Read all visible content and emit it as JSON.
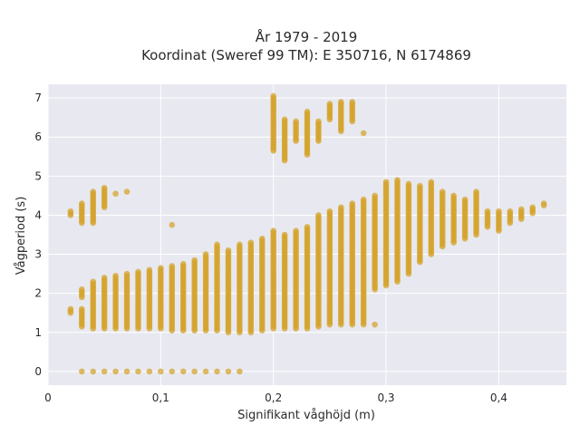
{
  "chart_data": {
    "type": "scatter",
    "title_line1": "År 1979 - 2019",
    "title_line2": "Koordinat (Sweref 99 TM): E 350716, N 6174869",
    "xlabel": "Signifikant våghöjd (m)",
    "ylabel": "Vågperiod (s)",
    "xlim": [
      0,
      0.46
    ],
    "ylim": [
      -0.35,
      7.35
    ],
    "x_ticks": [
      0,
      0.1,
      0.2,
      0.3,
      0.4
    ],
    "x_tick_labels": [
      "0",
      "0,1",
      "0,2",
      "0,3",
      "0,4"
    ],
    "y_ticks": [
      0,
      1,
      2,
      3,
      4,
      5,
      6,
      7
    ],
    "y_tick_labels": [
      "0",
      "1",
      "2",
      "3",
      "4",
      "5",
      "6",
      "7"
    ],
    "grid": true,
    "colors": {
      "plot_bg": "#e8e9f0",
      "grid": "#ffffff",
      "marker": "#d4a22a"
    },
    "columns": [
      {
        "x": 0.02,
        "segments": [
          [
            1.5,
            1.6
          ],
          [
            4.0,
            4.1
          ]
        ]
      },
      {
        "x": 0.03,
        "segments": [
          [
            0.0,
            0.0
          ],
          [
            1.15,
            1.6
          ],
          [
            1.9,
            2.1
          ],
          [
            3.8,
            4.3
          ]
        ]
      },
      {
        "x": 0.04,
        "segments": [
          [
            0.0,
            0.0
          ],
          [
            1.1,
            2.3
          ],
          [
            3.8,
            4.6
          ]
        ]
      },
      {
        "x": 0.05,
        "segments": [
          [
            0.0,
            0.0
          ],
          [
            1.1,
            2.4
          ],
          [
            4.2,
            4.7
          ]
        ]
      },
      {
        "x": 0.06,
        "segments": [
          [
            0.0,
            0.0
          ],
          [
            1.1,
            2.45
          ],
          [
            4.55,
            4.55
          ]
        ]
      },
      {
        "x": 0.07,
        "segments": [
          [
            0.0,
            0.0
          ],
          [
            1.1,
            2.5
          ],
          [
            4.6,
            4.6
          ]
        ]
      },
      {
        "x": 0.08,
        "segments": [
          [
            0.0,
            0.0
          ],
          [
            1.1,
            2.55
          ]
        ]
      },
      {
        "x": 0.09,
        "segments": [
          [
            0.0,
            0.0
          ],
          [
            1.1,
            2.6
          ]
        ]
      },
      {
        "x": 0.1,
        "segments": [
          [
            0.0,
            0.0
          ],
          [
            1.1,
            2.65
          ]
        ]
      },
      {
        "x": 0.11,
        "segments": [
          [
            0.0,
            0.0
          ],
          [
            1.05,
            2.7
          ],
          [
            3.75,
            3.75
          ]
        ]
      },
      {
        "x": 0.12,
        "segments": [
          [
            0.0,
            0.0
          ],
          [
            1.05,
            2.75
          ]
        ]
      },
      {
        "x": 0.13,
        "segments": [
          [
            0.0,
            0.0
          ],
          [
            1.05,
            2.85
          ]
        ]
      },
      {
        "x": 0.14,
        "segments": [
          [
            0.0,
            0.0
          ],
          [
            1.05,
            3.0
          ]
        ]
      },
      {
        "x": 0.15,
        "segments": [
          [
            0.0,
            0.0
          ],
          [
            1.05,
            3.25
          ]
        ]
      },
      {
        "x": 0.16,
        "segments": [
          [
            0.0,
            0.0
          ],
          [
            1.0,
            3.1
          ]
        ]
      },
      {
        "x": 0.17,
        "segments": [
          [
            0.0,
            0.0
          ],
          [
            1.0,
            3.25
          ]
        ]
      },
      {
        "x": 0.18,
        "segments": [
          [
            1.0,
            3.3
          ]
        ]
      },
      {
        "x": 0.19,
        "segments": [
          [
            1.05,
            3.4
          ]
        ]
      },
      {
        "x": 0.2,
        "segments": [
          [
            1.1,
            3.6
          ],
          [
            5.65,
            7.05
          ]
        ]
      },
      {
        "x": 0.21,
        "segments": [
          [
            1.1,
            3.5
          ],
          [
            5.4,
            6.45
          ]
        ]
      },
      {
        "x": 0.22,
        "segments": [
          [
            1.1,
            3.6
          ],
          [
            5.9,
            6.4
          ]
        ]
      },
      {
        "x": 0.23,
        "segments": [
          [
            1.1,
            3.7
          ],
          [
            5.55,
            6.65
          ]
        ]
      },
      {
        "x": 0.24,
        "segments": [
          [
            1.15,
            4.0
          ],
          [
            5.9,
            6.4
          ]
        ]
      },
      {
        "x": 0.25,
        "segments": [
          [
            1.2,
            4.1
          ],
          [
            6.45,
            6.85
          ]
        ]
      },
      {
        "x": 0.26,
        "segments": [
          [
            1.2,
            4.2
          ],
          [
            6.15,
            6.9
          ]
        ]
      },
      {
        "x": 0.27,
        "segments": [
          [
            1.2,
            4.3
          ],
          [
            6.4,
            6.9
          ]
        ]
      },
      {
        "x": 0.28,
        "segments": [
          [
            1.2,
            4.4
          ],
          [
            6.1,
            6.1
          ]
        ]
      },
      {
        "x": 0.29,
        "segments": [
          [
            1.2,
            1.2
          ],
          [
            2.1,
            4.5
          ]
        ]
      },
      {
        "x": 0.3,
        "segments": [
          [
            2.2,
            4.85
          ]
        ]
      },
      {
        "x": 0.31,
        "segments": [
          [
            2.3,
            4.9
          ]
        ]
      },
      {
        "x": 0.32,
        "segments": [
          [
            2.5,
            4.8
          ]
        ]
      },
      {
        "x": 0.33,
        "segments": [
          [
            2.8,
            4.75
          ]
        ]
      },
      {
        "x": 0.34,
        "segments": [
          [
            3.0,
            4.85
          ]
        ]
      },
      {
        "x": 0.35,
        "segments": [
          [
            3.2,
            4.6
          ]
        ]
      },
      {
        "x": 0.36,
        "segments": [
          [
            3.3,
            4.5
          ]
        ]
      },
      {
        "x": 0.37,
        "segments": [
          [
            3.4,
            4.4
          ]
        ]
      },
      {
        "x": 0.38,
        "segments": [
          [
            3.5,
            4.6
          ]
        ]
      },
      {
        "x": 0.39,
        "segments": [
          [
            3.7,
            4.1
          ]
        ]
      },
      {
        "x": 0.4,
        "segments": [
          [
            3.6,
            4.1
          ]
        ]
      },
      {
        "x": 0.41,
        "segments": [
          [
            3.8,
            4.1
          ]
        ]
      },
      {
        "x": 0.42,
        "segments": [
          [
            3.9,
            4.15
          ]
        ]
      },
      {
        "x": 0.43,
        "segments": [
          [
            4.05,
            4.2
          ]
        ]
      },
      {
        "x": 0.44,
        "segments": [
          [
            4.25,
            4.3
          ]
        ]
      }
    ]
  }
}
